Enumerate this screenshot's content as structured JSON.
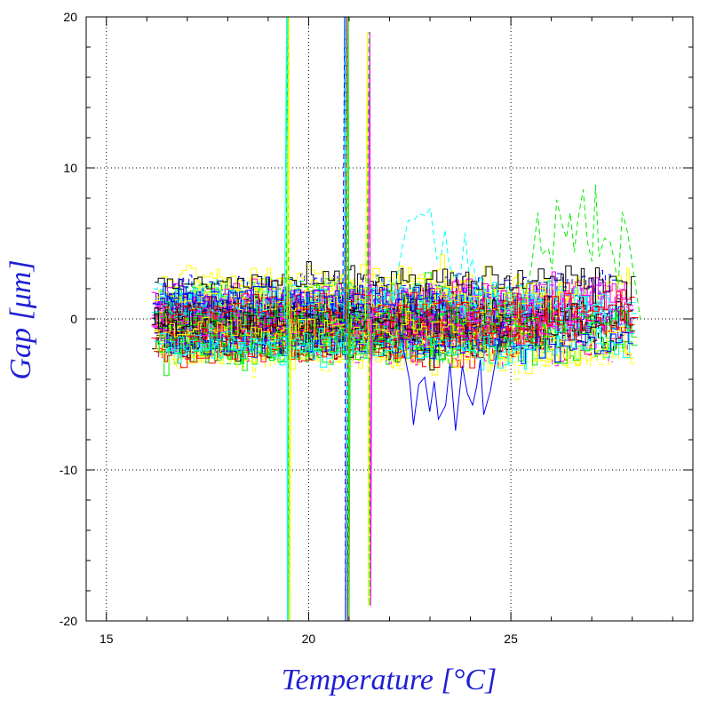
{
  "chart_data": {
    "type": "line",
    "xlabel": "Temperature [°C]",
    "ylabel": "Gap [μm]",
    "xlim": [
      14.5,
      29.5
    ],
    "ylim": [
      -20,
      20
    ],
    "x_ticks": [
      15,
      20,
      25
    ],
    "y_ticks": [
      -20,
      -10,
      0,
      10,
      20
    ],
    "x_tick_labels": [
      "15",
      "20",
      "25"
    ],
    "y_tick_labels": [
      "-20",
      "-10",
      "0",
      "10",
      "20"
    ],
    "x_grid_at": [
      15,
      20,
      25
    ],
    "y_grid_at": [
      -10,
      0,
      10
    ],
    "grid": "dotted",
    "legend": "none",
    "series_count_estimate": 200,
    "series_colors": [
      "#ff0000",
      "#0000ff",
      "#00ee00",
      "#ffff00",
      "#00ffff",
      "#ff00ff",
      "#000000"
    ],
    "x_range_of_data": [
      16.1,
      28.0
    ],
    "typical_y_band": [
      -4,
      4
    ],
    "excursions": [
      {
        "x": 19.5,
        "y_range": [
          -20,
          20
        ],
        "colors": [
          "#00ffff",
          "#00ee00",
          "#ffff00"
        ]
      },
      {
        "x": 20.95,
        "y_range": [
          -20,
          20
        ],
        "colors": [
          "#0000ff",
          "#00ffff",
          "#ff0000",
          "#00ee00"
        ]
      },
      {
        "x": 21.5,
        "y_range": [
          -19,
          19
        ],
        "colors": [
          "#ffff00",
          "#00ee00",
          "#ff00ff"
        ]
      },
      {
        "x_range": [
          22.3,
          24.3
        ],
        "y_range": [
          2,
          7.5
        ],
        "colors": [
          "#00ffff"
        ]
      },
      {
        "x_range": [
          22.5,
          24.6
        ],
        "y_range": [
          -7.2,
          -3
        ],
        "colors": [
          "#0000ff"
        ]
      },
      {
        "x_range": [
          25.5,
          28.0
        ],
        "y_range": [
          2,
          9
        ],
        "colors": [
          "#00ee00"
        ]
      }
    ]
  }
}
